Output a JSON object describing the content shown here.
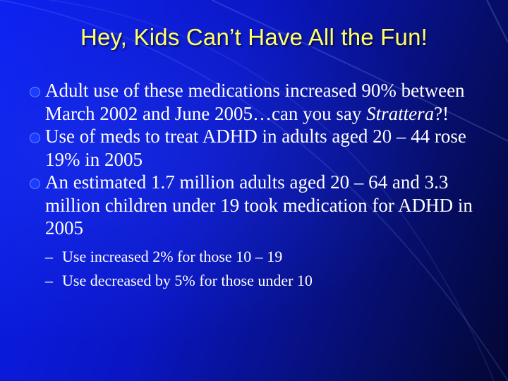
{
  "slide": {
    "title": "Hey, Kids Can’t Have All the Fun!",
    "bullets": [
      {
        "text": "Adult use of these medications increased 90% between March 2002 and June 2005…can you say ",
        "emphasis": "Strattera",
        "suffix": "?!"
      },
      {
        "text": "Use of meds to treat ADHD in adults aged 20 – 44 rose 19% in 2005"
      },
      {
        "text": "An estimated 1.7 million adults aged 20 – 64 and 3.3 million children under 19 took medication for ADHD in 2005"
      }
    ],
    "subbullets": [
      {
        "marker": "–",
        "text": "Use increased 2% for those 10 – 19"
      },
      {
        "marker": "–",
        "text": "Use decreased by 5% for those under 10"
      }
    ],
    "colors": {
      "title": "#ffff66",
      "body_text": "#ffffff",
      "bullet": "#1a3cff",
      "background_start": "#0b1ff0",
      "background_end": "#030733"
    }
  }
}
